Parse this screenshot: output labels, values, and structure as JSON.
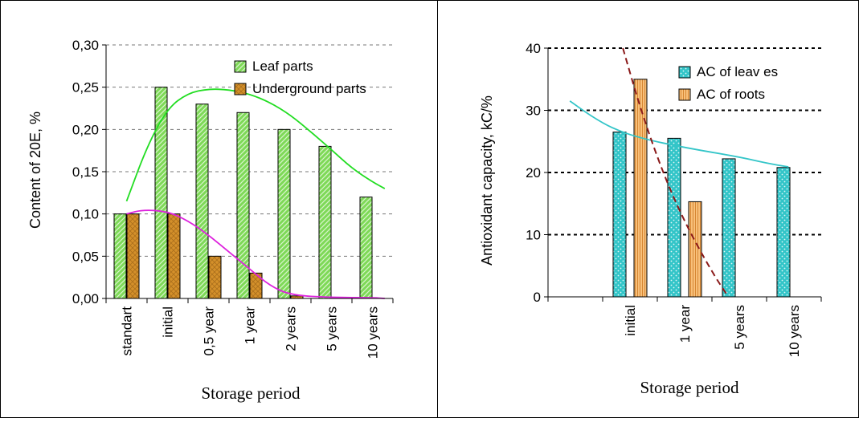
{
  "chart_data": [
    {
      "type": "bar",
      "xlabel": "Storage period",
      "ylabel": "Content of 20E, %",
      "ylim": [
        0,
        0.3
      ],
      "yticks": [
        "0,00",
        "0,05",
        "0,10",
        "0,15",
        "0,20",
        "0,25",
        "0,30"
      ],
      "categories": [
        "standart",
        "initial",
        "0,5 year",
        "1 year",
        "2 years",
        "5 years",
        "10 years"
      ],
      "legend_position": "top-right",
      "series": [
        {
          "name": "Leaf parts",
          "color": "#7ED957",
          "values": [
            0.1,
            0.25,
            0.23,
            0.22,
            0.2,
            0.18,
            0.12
          ]
        },
        {
          "name": "Underground parts",
          "color": "#D4902A",
          "values": [
            0.1,
            0.1,
            0.05,
            0.03,
            0.003,
            0,
            0
          ]
        }
      ],
      "trendlines": [
        {
          "color": "#22DD22",
          "points": [
            [
              0,
              0.115
            ],
            [
              0.5,
              0.18
            ],
            [
              1,
              0.225
            ],
            [
              1.5,
              0.243
            ],
            [
              2,
              0.248
            ],
            [
              2.5,
              0.247
            ],
            [
              3,
              0.242
            ],
            [
              3.5,
              0.232
            ],
            [
              4,
              0.217
            ],
            [
              4.5,
              0.197
            ],
            [
              5,
              0.176
            ],
            [
              5.5,
              0.154
            ],
            [
              6,
              0.138
            ],
            [
              6.3,
              0.13
            ]
          ]
        },
        {
          "color": "#DD22DD",
          "points": [
            [
              0,
              0.1
            ],
            [
              0.4,
              0.105
            ],
            [
              1,
              0.103
            ],
            [
              1.5,
              0.092
            ],
            [
              2,
              0.075
            ],
            [
              2.5,
              0.055
            ],
            [
              3,
              0.035
            ],
            [
              3.5,
              0.015
            ],
            [
              4,
              0.004
            ],
            [
              5,
              0.001
            ],
            [
              6,
              0.001
            ],
            [
              6.3,
              0
            ]
          ]
        }
      ]
    },
    {
      "type": "bar",
      "xlabel": "Storage period",
      "ylabel": "Antioxidant capacity, kC/%",
      "ylim": [
        0,
        40
      ],
      "yticks": [
        "0",
        "10",
        "20",
        "30",
        "40"
      ],
      "categories": [
        "",
        "initial",
        "1 year",
        "5 years",
        "10 years"
      ],
      "legend_position": "top-right",
      "series": [
        {
          "name": "AC of leav es",
          "color": "#33C5C8",
          "values": [
            null,
            26.5,
            25.5,
            22.2,
            20.8
          ]
        },
        {
          "name": "AC of roots",
          "color": "#F8C07A",
          "values": [
            null,
            35,
            15.3,
            null,
            null
          ]
        }
      ],
      "trendlines": [
        {
          "color": "#33C5C8",
          "points": [
            [
              -0.1,
              31.5
            ],
            [
              0.3,
              29
            ],
            [
              0.7,
              27
            ],
            [
              1.2,
              25.5
            ],
            [
              2,
              24
            ],
            [
              3,
              22.5
            ],
            [
              3.5,
              21.5
            ],
            [
              3.9,
              20.9
            ]
          ]
        },
        {
          "color": "#8B1A1A",
          "dashed": true,
          "points": [
            [
              0.87,
              40
            ],
            [
              1.2,
              30
            ],
            [
              1.6,
              20
            ],
            [
              2,
              12
            ],
            [
              2.5,
              4
            ],
            [
              2.8,
              0
            ]
          ]
        }
      ]
    }
  ]
}
